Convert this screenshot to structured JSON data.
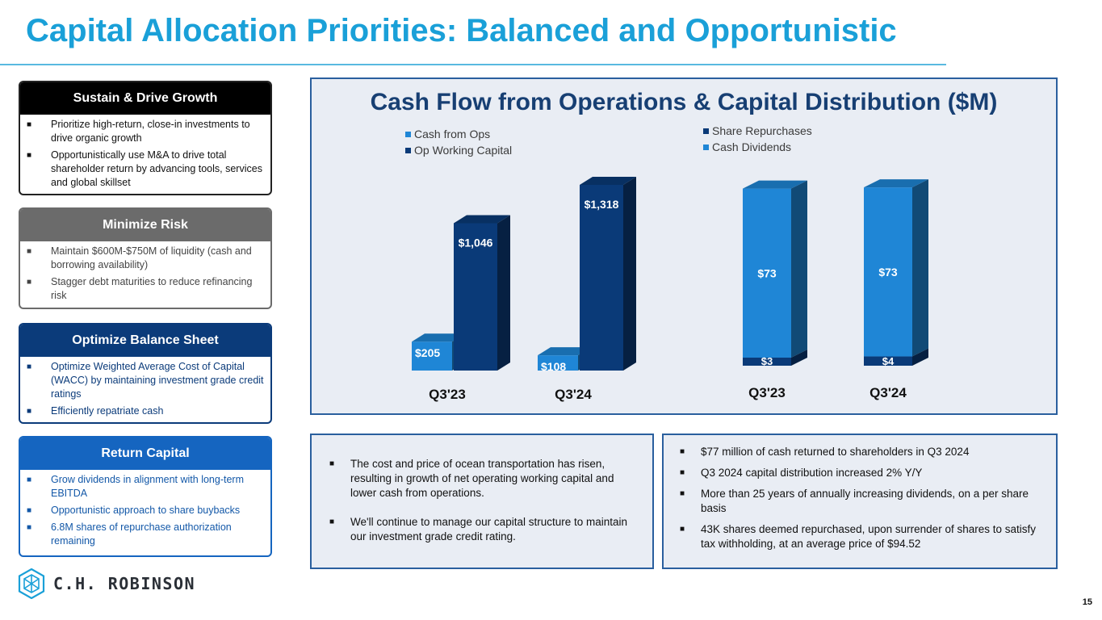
{
  "title": "Capital Allocation Priorities: Balanced and Opportunistic",
  "priorities": [
    {
      "heading": "Sustain & Drive Growth",
      "items": [
        "Prioritize high-return, close-in investments to drive organic growth",
        "Opportunistically use M&A to drive total shareholder return by advancing tools, services and global skillset"
      ]
    },
    {
      "heading": "Minimize Risk",
      "items": [
        "Maintain $600M-$750M of liquidity (cash and borrowing availability)",
        "Stagger debt maturities to reduce refinancing risk"
      ]
    },
    {
      "heading": "Optimize Balance Sheet",
      "items": [
        "Optimize Weighted Average Cost of Capital (WACC) by maintaining investment grade credit ratings",
        "Efficiently repatriate cash"
      ]
    },
    {
      "heading": "Return Capital",
      "items": [
        "Grow dividends in alignment with long-term EBITDA",
        "Opportunistic approach to share buybacks",
        "6.8M shares of repurchase authorization remaining"
      ]
    }
  ],
  "bullet_glyph": "■",
  "chart_data": {
    "title": "Cash Flow from Operations & Capital Distribution ($M)",
    "type": "bar",
    "charts": [
      {
        "type": "bar",
        "categories": [
          "Q3'23",
          "Q3'24"
        ],
        "series": [
          {
            "name": "Cash from Ops",
            "values": [
              205,
              108
            ],
            "labels": [
              "$205",
              "$108"
            ],
            "color": "#1f86d6"
          },
          {
            "name": "Op Working Capital",
            "values": [
              1046,
              1318
            ],
            "labels": [
              "$1,046",
              "$1,318"
            ],
            "color": "#0a3a78"
          }
        ]
      },
      {
        "type": "bar",
        "stacked": true,
        "categories": [
          "Q3'23",
          "Q3'24"
        ],
        "series": [
          {
            "name": "Share Repurchases",
            "values": [
              3,
              4
            ],
            "labels": [
              "$3",
              "$4"
            ],
            "color": "#0a3a78"
          },
          {
            "name": "Cash Dividends",
            "values": [
              73,
              73
            ],
            "labels": [
              "$73",
              "$73"
            ],
            "color": "#1f86d6"
          }
        ]
      }
    ]
  },
  "commentary_left": [
    "The cost and price of ocean transportation has risen, resulting in growth of net operating working capital and lower cash from operations.",
    "We'll continue to manage our capital structure to maintain our investment grade credit rating."
  ],
  "commentary_right": [
    "$77 million of cash returned to shareholders in Q3 2024",
    "Q3 2024 capital distribution increased 2% Y/Y",
    "More than 25 years of annually increasing dividends, on a per share basis",
    "43K shares deemed repurchased, upon surrender of shares to satisfy tax withholding, at an average price of $94.52"
  ],
  "logo": {
    "text": "C.H. ROBINSON",
    "icon": "hexagon-logo-icon"
  },
  "page_number": "15"
}
